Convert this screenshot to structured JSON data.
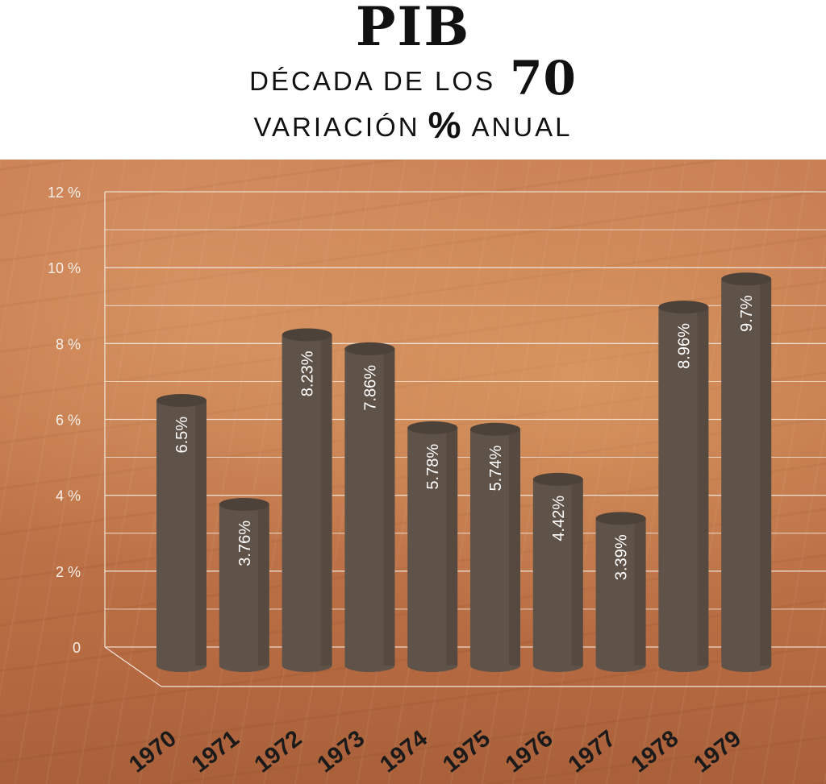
{
  "header": {
    "title": "PIB",
    "subtitle_prefix": "DÉCADA DE LOS",
    "subtitle_number": "70",
    "subtitle2_left": "VARIACIÓN",
    "subtitle2_pct": "%",
    "subtitle2_right": "ANUAL"
  },
  "colors": {
    "bar": "#5f5248",
    "bar_top": "#4d423a",
    "grid": "#f1e6dc",
    "axis_text": "#f6efe9",
    "year_text": "#1a1a1a"
  },
  "chart_data": {
    "type": "bar",
    "title": "PIB",
    "ylabel": "",
    "xlabel": "",
    "ylim": [
      0,
      12
    ],
    "y_ticks": [
      "0",
      "2 %",
      "4 %",
      "6 %",
      "8 %",
      "10 %",
      "12 %"
    ],
    "categories": [
      "1970",
      "1971",
      "1972",
      "1973",
      "1974",
      "1975",
      "1976",
      "1977",
      "1978",
      "1979"
    ],
    "values": [
      6.5,
      3.76,
      8.23,
      7.86,
      5.78,
      5.74,
      4.42,
      3.39,
      8.96,
      9.7
    ],
    "labels": [
      "6.5%",
      "3.76%",
      "8.23%",
      "7.86%",
      "5.78%",
      "5.74%",
      "4.42%",
      "3.39%",
      "8.96%",
      "9.7%"
    ],
    "grid": true
  }
}
